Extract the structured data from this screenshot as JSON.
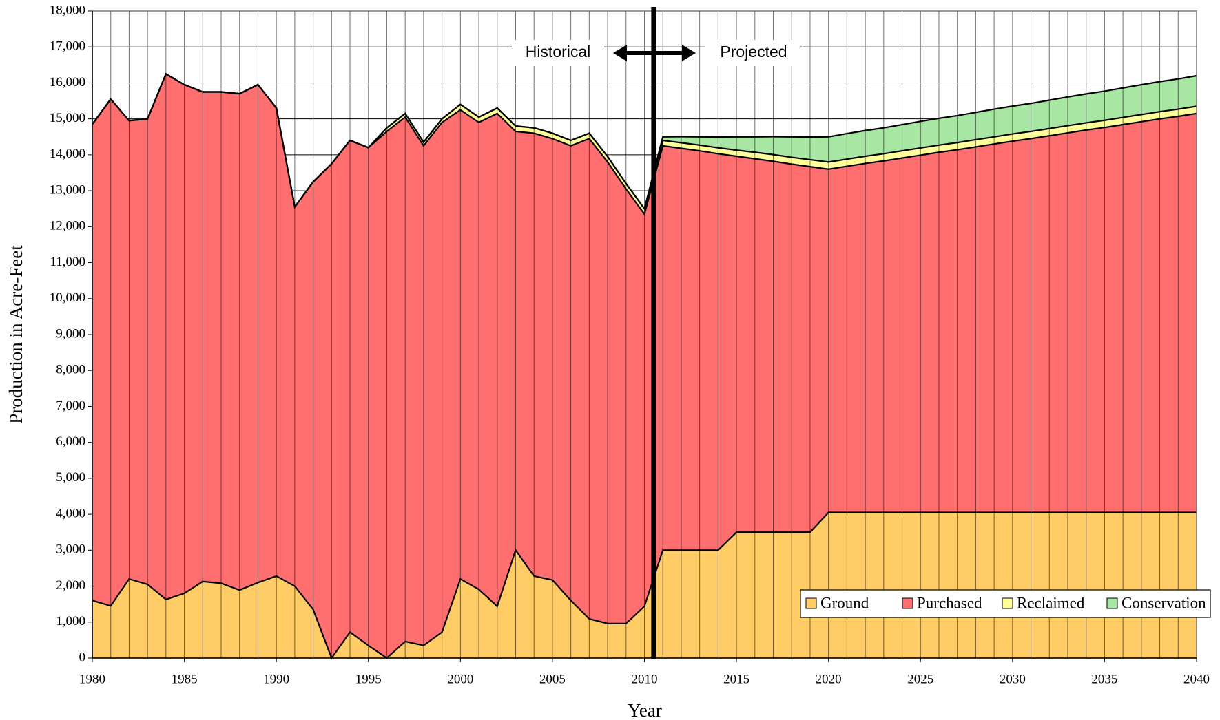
{
  "chart_data": {
    "type": "stacked-area",
    "x_label": "Year",
    "y_label": "Production in Acre-Feet",
    "annotations": [
      "Historical",
      "Projected"
    ],
    "x": [
      1980,
      1981,
      1982,
      1983,
      1984,
      1985,
      1986,
      1987,
      1988,
      1989,
      1990,
      1991,
      1992,
      1993,
      1994,
      1995,
      1996,
      1997,
      1998,
      1999,
      2000,
      2001,
      2002,
      2003,
      2004,
      2005,
      2006,
      2007,
      2008,
      2009,
      2010,
      2011,
      2012,
      2013,
      2014,
      2015,
      2016,
      2017,
      2018,
      2019,
      2020,
      2021,
      2022,
      2023,
      2024,
      2025,
      2026,
      2027,
      2028,
      2029,
      2030,
      2031,
      2032,
      2033,
      2034,
      2035,
      2036,
      2037,
      2038,
      2039,
      2040
    ],
    "series": [
      {
        "name": "Ground",
        "color": "#ffcc66",
        "values": [
          1600,
          1450,
          2200,
          2050,
          1630,
          1800,
          2130,
          2080,
          1890,
          2100,
          2280,
          2000,
          1350,
          0,
          720,
          350,
          0,
          460,
          350,
          720,
          2200,
          1910,
          1440,
          3000,
          2280,
          2170,
          1600,
          1090,
          960,
          960,
          1440,
          3000,
          3000,
          3000,
          3000,
          3500,
          3500,
          3500,
          3500,
          3500,
          4050,
          4050,
          4050,
          4050,
          4050,
          4050,
          4050,
          4050,
          4050,
          4050,
          4050,
          4050,
          4050,
          4050,
          4050,
          4050,
          4050,
          4050,
          4050,
          4050,
          4050
        ]
      },
      {
        "name": "Purchased",
        "color": "#ff6f6f",
        "values": [
          13250,
          14100,
          12750,
          12950,
          14620,
          14150,
          13620,
          13670,
          13810,
          13850,
          13020,
          10550,
          11900,
          13750,
          13680,
          13850,
          14650,
          14590,
          13900,
          14180,
          13050,
          12990,
          13710,
          11650,
          12320,
          12280,
          12650,
          13360,
          12840,
          12090,
          10910,
          11250,
          11180,
          11110,
          11030,
          10460,
          10390,
          10320,
          10240,
          10170,
          9550,
          9630,
          9710,
          9780,
          9860,
          9940,
          10020,
          10090,
          10170,
          10250,
          10330,
          10400,
          10480,
          10560,
          10640,
          10710,
          10790,
          10870,
          10950,
          11020,
          11100
        ]
      },
      {
        "name": "Reclaimed",
        "color": "#ffff99",
        "values": [
          0,
          0,
          0,
          0,
          0,
          0,
          0,
          0,
          0,
          0,
          0,
          0,
          0,
          0,
          0,
          0,
          100,
          100,
          100,
          100,
          150,
          150,
          150,
          150,
          150,
          150,
          150,
          150,
          150,
          150,
          150,
          150,
          155,
          160,
          165,
          170,
          180,
          185,
          190,
          195,
          200,
          200,
          200,
          200,
          200,
          200,
          200,
          200,
          200,
          200,
          200,
          200,
          200,
          200,
          200,
          200,
          200,
          200,
          200,
          200,
          200
        ]
      },
      {
        "name": "Conservation",
        "color": "#a8e6a3",
        "values": [
          0,
          0,
          0,
          0,
          0,
          0,
          0,
          0,
          0,
          0,
          0,
          0,
          0,
          0,
          0,
          0,
          0,
          0,
          0,
          0,
          0,
          0,
          0,
          0,
          0,
          0,
          0,
          0,
          0,
          0,
          0,
          100,
          170,
          230,
          300,
          370,
          430,
          500,
          570,
          630,
          700,
          710,
          715,
          720,
          730,
          740,
          745,
          750,
          760,
          770,
          775,
          780,
          790,
          800,
          805,
          810,
          820,
          830,
          835,
          840,
          850
        ]
      }
    ],
    "xlim": [
      1980,
      2040
    ],
    "xticks": [
      1980,
      1985,
      1990,
      1995,
      2000,
      2005,
      2010,
      2015,
      2020,
      2025,
      2030,
      2035,
      2040
    ],
    "ylim": [
      0,
      18000
    ],
    "yticks": [
      0,
      {
        "value": 1000,
        "label": "1,000"
      },
      {
        "value": 2000,
        "label": "2,000"
      },
      {
        "value": 3000,
        "label": "3,000"
      },
      {
        "value": 4000,
        "label": "4,000"
      },
      {
        "value": 5000,
        "label": "5,000"
      },
      {
        "value": 6000,
        "label": "6,000"
      },
      {
        "value": 7000,
        "label": "7,000"
      },
      {
        "value": 8000,
        "label": "8,000"
      },
      {
        "value": 9000,
        "label": "9,000"
      },
      {
        "value": 10000,
        "label": "10,000"
      },
      {
        "value": 11000,
        "label": "11,000"
      },
      {
        "value": 12000,
        "label": "12,000"
      },
      {
        "value": 13000,
        "label": "13,000"
      },
      {
        "value": 14000,
        "label": "14,000"
      },
      {
        "value": 15000,
        "label": "15,000"
      },
      {
        "value": 16000,
        "label": "16,000"
      },
      {
        "value": 17000,
        "label": "17,000"
      },
      {
        "value": 18000,
        "label": "18,000"
      }
    ],
    "grid": true,
    "legend": "lower right"
  }
}
